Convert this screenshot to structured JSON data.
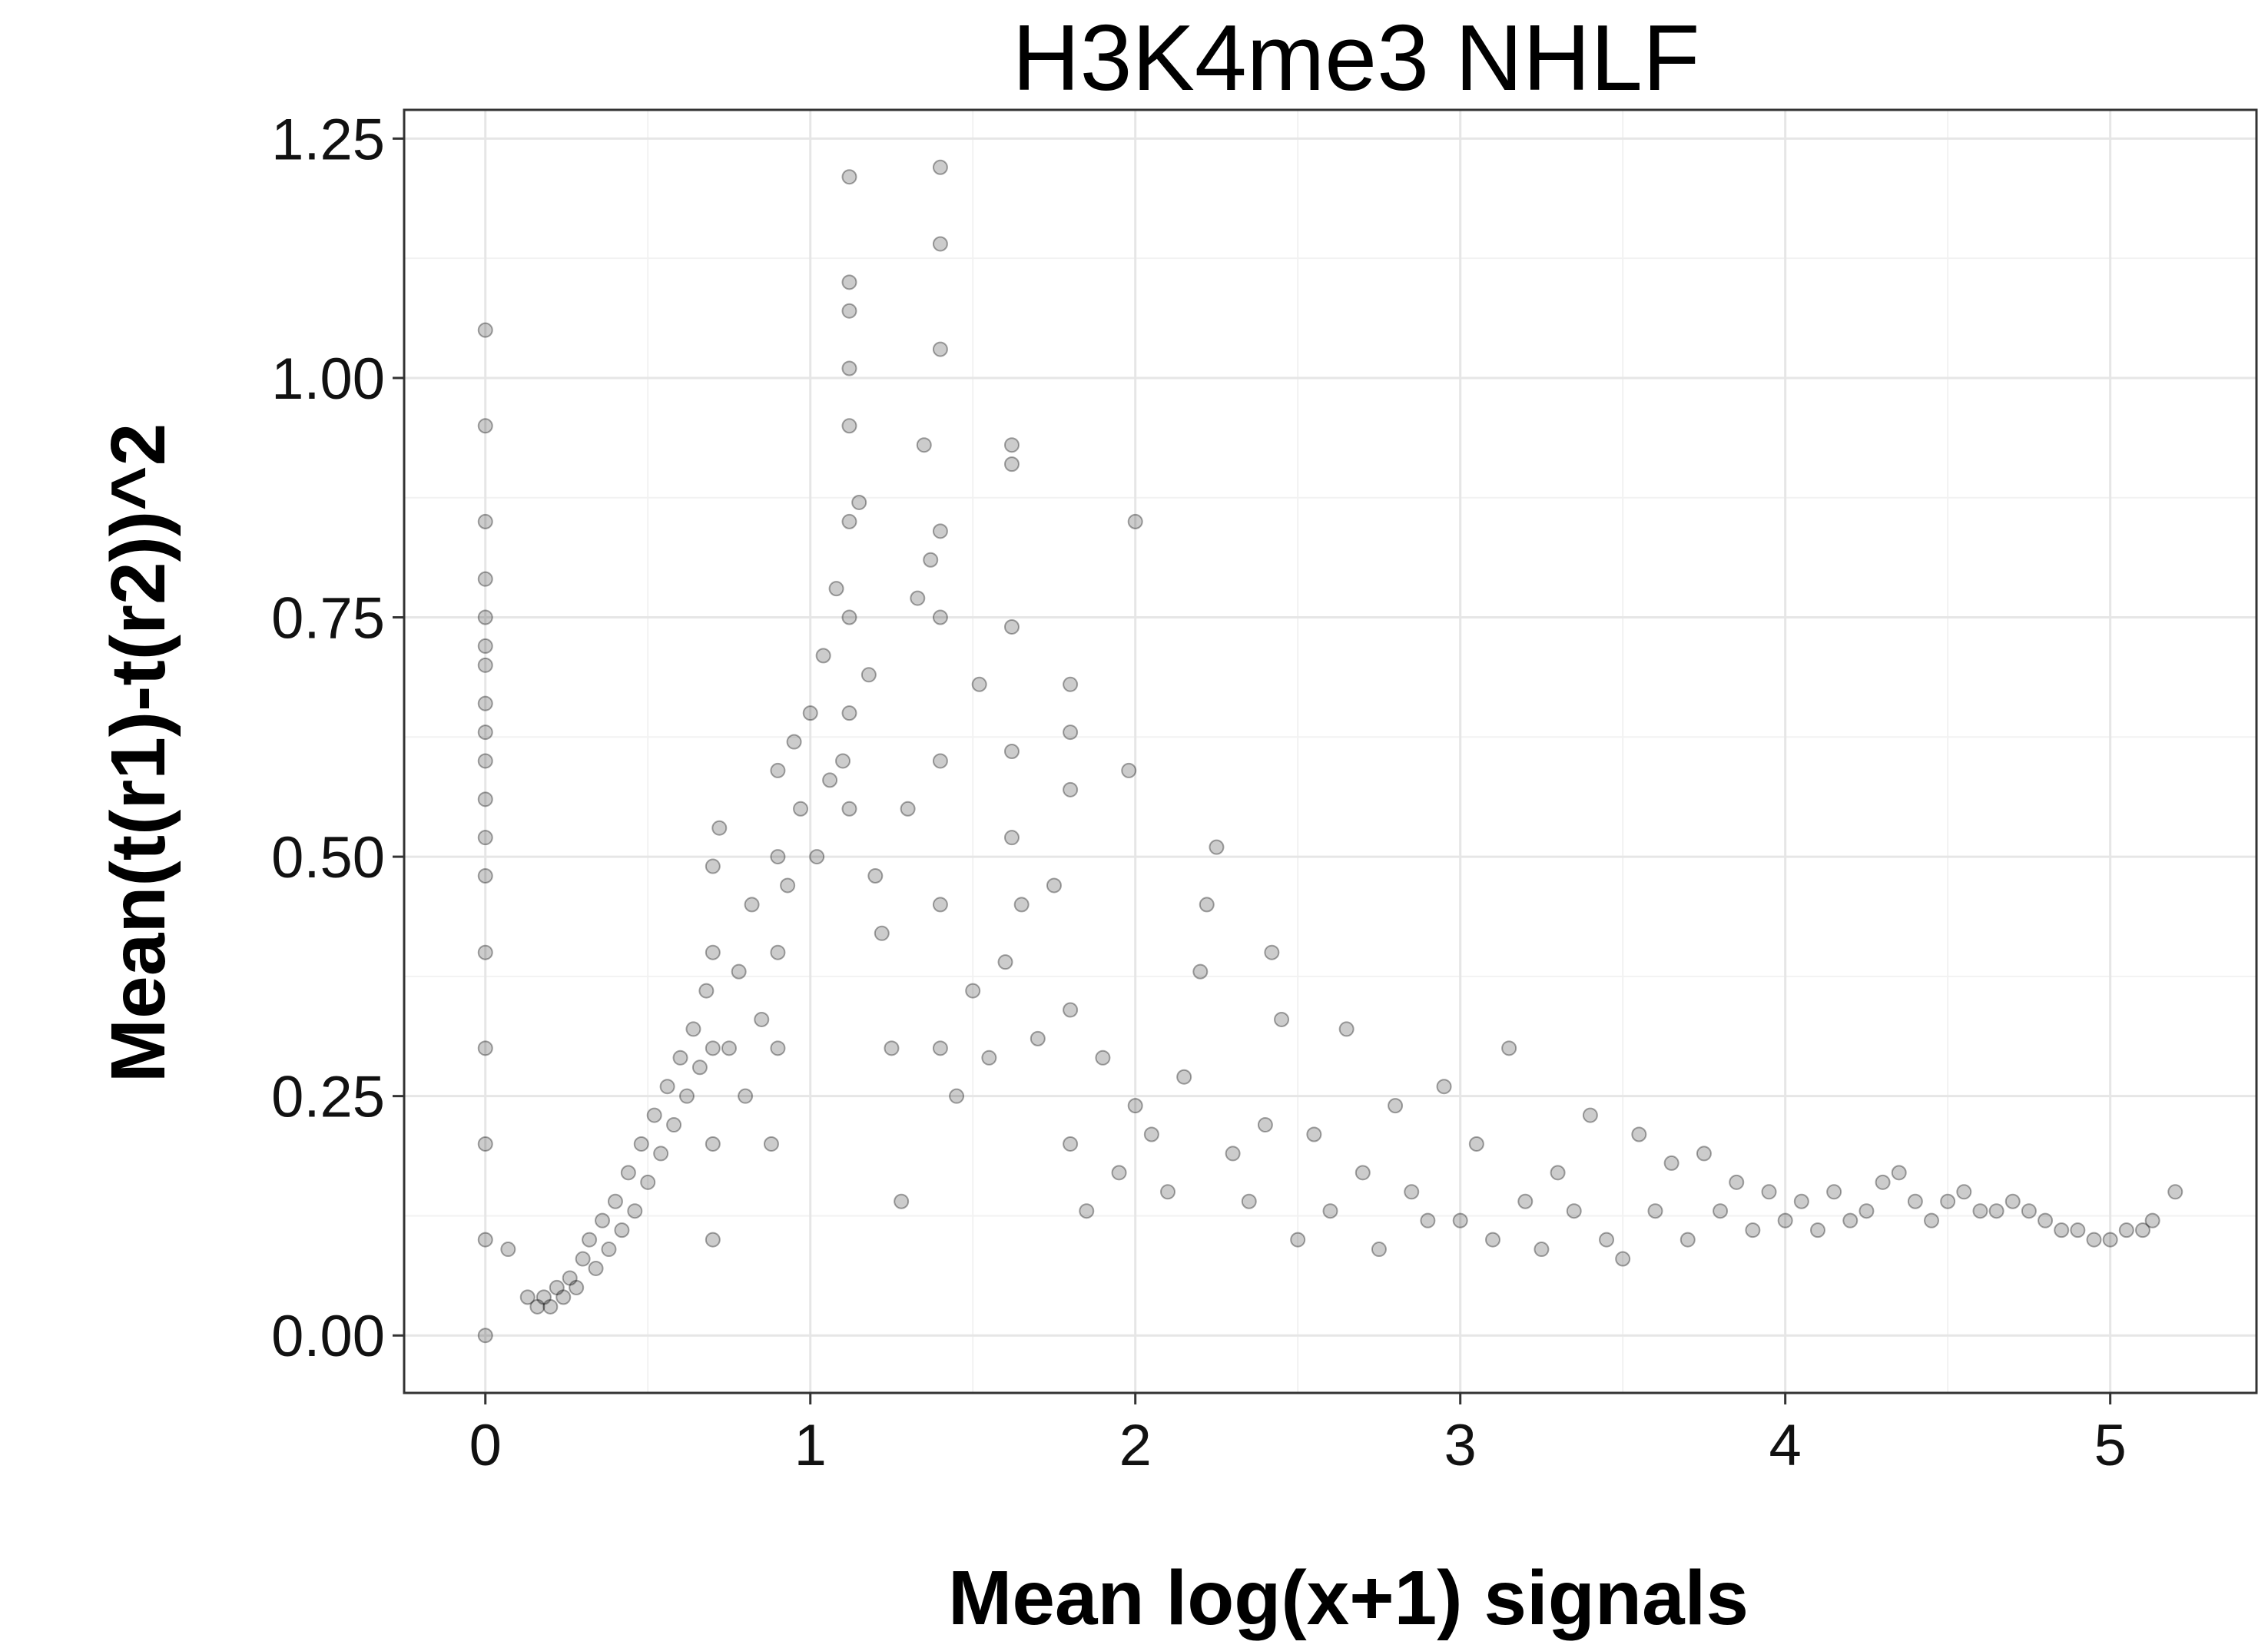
{
  "chart_data": {
    "type": "scatter",
    "title": "H3K4me3 NHLF",
    "xlabel": "Mean log(x+1) signals",
    "ylabel": "Mean(t(r1)-t(r2))^2",
    "xlim": [
      -0.25,
      5.45
    ],
    "ylim": [
      -0.06,
      1.28
    ],
    "x_ticks": [
      0,
      1,
      2,
      3,
      4,
      5
    ],
    "y_ticks": [
      0.0,
      0.25,
      0.5,
      0.75,
      1.0,
      1.25
    ],
    "x_tick_labels": [
      "0",
      "1",
      "2",
      "3",
      "4",
      "5"
    ],
    "y_tick_labels": [
      "0.00",
      "0.25",
      "0.50",
      "0.75",
      "1.00",
      "1.25"
    ],
    "grid": true,
    "legend": "none",
    "point_color": "#000000",
    "point_opacity": 0.2,
    "series": [
      {
        "points": [
          [
            0,
            0.0
          ],
          [
            0,
            0.1
          ],
          [
            0,
            0.2
          ],
          [
            0,
            0.3
          ],
          [
            0,
            0.4
          ],
          [
            0,
            0.48
          ],
          [
            0,
            0.52
          ],
          [
            0,
            0.56
          ],
          [
            0,
            0.6
          ],
          [
            0,
            0.63
          ],
          [
            0,
            0.66
          ],
          [
            0,
            0.7
          ],
          [
            0,
            0.72
          ],
          [
            0,
            0.75
          ],
          [
            0,
            0.79
          ],
          [
            0,
            0.85
          ],
          [
            0,
            0.95
          ],
          [
            0,
            1.05
          ],
          [
            0.07,
            0.09
          ],
          [
            0.13,
            0.04
          ],
          [
            0.16,
            0.03
          ],
          [
            0.18,
            0.04
          ],
          [
            0.2,
            0.03
          ],
          [
            0.22,
            0.05
          ],
          [
            0.24,
            0.04
          ],
          [
            0.26,
            0.06
          ],
          [
            0.28,
            0.05
          ],
          [
            0.3,
            0.08
          ],
          [
            0.32,
            0.1
          ],
          [
            0.34,
            0.07
          ],
          [
            0.36,
            0.12
          ],
          [
            0.38,
            0.09
          ],
          [
            0.4,
            0.14
          ],
          [
            0.42,
            0.11
          ],
          [
            0.44,
            0.17
          ],
          [
            0.46,
            0.13
          ],
          [
            0.48,
            0.2
          ],
          [
            0.5,
            0.16
          ],
          [
            0.52,
            0.23
          ],
          [
            0.54,
            0.19
          ],
          [
            0.56,
            0.26
          ],
          [
            0.58,
            0.22
          ],
          [
            0.6,
            0.29
          ],
          [
            0.62,
            0.25
          ],
          [
            0.64,
            0.32
          ],
          [
            0.66,
            0.28
          ],
          [
            0.68,
            0.36
          ],
          [
            0.7,
            0.1
          ],
          [
            0.7,
            0.2
          ],
          [
            0.7,
            0.3
          ],
          [
            0.7,
            0.4
          ],
          [
            0.7,
            0.49
          ],
          [
            0.72,
            0.53
          ],
          [
            0.75,
            0.3
          ],
          [
            0.78,
            0.38
          ],
          [
            0.8,
            0.25
          ],
          [
            0.82,
            0.45
          ],
          [
            0.85,
            0.33
          ],
          [
            0.88,
            0.2
          ],
          [
            0.9,
            0.3
          ],
          [
            0.9,
            0.4
          ],
          [
            0.9,
            0.5
          ],
          [
            0.9,
            0.59
          ],
          [
            0.93,
            0.47
          ],
          [
            0.95,
            0.62
          ],
          [
            0.97,
            0.55
          ],
          [
            1.0,
            0.65
          ],
          [
            1.02,
            0.5
          ],
          [
            1.04,
            0.71
          ],
          [
            1.06,
            0.58
          ],
          [
            1.08,
            0.78
          ],
          [
            1.1,
            0.6
          ],
          [
            1.12,
            0.55
          ],
          [
            1.12,
            0.65
          ],
          [
            1.12,
            0.75
          ],
          [
            1.12,
            0.85
          ],
          [
            1.12,
            0.95
          ],
          [
            1.12,
            1.01
          ],
          [
            1.12,
            1.07
          ],
          [
            1.12,
            1.1
          ],
          [
            1.12,
            1.21
          ],
          [
            1.15,
            0.87
          ],
          [
            1.18,
            0.69
          ],
          [
            1.2,
            0.48
          ],
          [
            1.22,
            0.42
          ],
          [
            1.25,
            0.3
          ],
          [
            1.28,
            0.14
          ],
          [
            1.3,
            0.55
          ],
          [
            1.33,
            0.77
          ],
          [
            1.35,
            0.93
          ],
          [
            1.37,
            0.81
          ],
          [
            1.4,
            0.3
          ],
          [
            1.4,
            0.45
          ],
          [
            1.4,
            0.6
          ],
          [
            1.4,
            0.75
          ],
          [
            1.4,
            0.84
          ],
          [
            1.4,
            1.03
          ],
          [
            1.4,
            1.14
          ],
          [
            1.4,
            1.22
          ],
          [
            1.45,
            0.25
          ],
          [
            1.5,
            0.36
          ],
          [
            1.52,
            0.68
          ],
          [
            1.55,
            0.29
          ],
          [
            1.6,
            0.39
          ],
          [
            1.62,
            0.52
          ],
          [
            1.62,
            0.61
          ],
          [
            1.62,
            0.74
          ],
          [
            1.62,
            0.91
          ],
          [
            1.62,
            0.93
          ],
          [
            1.65,
            0.45
          ],
          [
            1.7,
            0.31
          ],
          [
            1.75,
            0.47
          ],
          [
            1.8,
            0.2
          ],
          [
            1.8,
            0.34
          ],
          [
            1.8,
            0.57
          ],
          [
            1.8,
            0.63
          ],
          [
            1.8,
            0.68
          ],
          [
            1.85,
            0.13
          ],
          [
            1.9,
            0.29
          ],
          [
            1.95,
            0.17
          ],
          [
            1.98,
            0.59
          ],
          [
            2.0,
            0.24
          ],
          [
            2.0,
            0.85
          ],
          [
            2.05,
            0.21
          ],
          [
            2.1,
            0.15
          ],
          [
            2.15,
            0.27
          ],
          [
            2.2,
            0.38
          ],
          [
            2.22,
            0.45
          ],
          [
            2.25,
            0.51
          ],
          [
            2.3,
            0.19
          ],
          [
            2.35,
            0.14
          ],
          [
            2.4,
            0.22
          ],
          [
            2.42,
            0.4
          ],
          [
            2.45,
            0.33
          ],
          [
            2.5,
            0.1
          ],
          [
            2.55,
            0.21
          ],
          [
            2.6,
            0.13
          ],
          [
            2.65,
            0.32
          ],
          [
            2.7,
            0.17
          ],
          [
            2.75,
            0.09
          ],
          [
            2.8,
            0.24
          ],
          [
            2.85,
            0.15
          ],
          [
            2.9,
            0.12
          ],
          [
            2.95,
            0.26
          ],
          [
            3.0,
            0.12
          ],
          [
            3.05,
            0.2
          ],
          [
            3.1,
            0.1
          ],
          [
            3.15,
            0.3
          ],
          [
            3.2,
            0.14
          ],
          [
            3.25,
            0.09
          ],
          [
            3.3,
            0.17
          ],
          [
            3.35,
            0.13
          ],
          [
            3.4,
            0.23
          ],
          [
            3.45,
            0.1
          ],
          [
            3.5,
            0.08
          ],
          [
            3.55,
            0.21
          ],
          [
            3.6,
            0.13
          ],
          [
            3.65,
            0.18
          ],
          [
            3.7,
            0.1
          ],
          [
            3.75,
            0.19
          ],
          [
            3.8,
            0.13
          ],
          [
            3.85,
            0.16
          ],
          [
            3.9,
            0.11
          ],
          [
            3.95,
            0.15
          ],
          [
            4.0,
            0.12
          ],
          [
            4.05,
            0.14
          ],
          [
            4.1,
            0.11
          ],
          [
            4.15,
            0.15
          ],
          [
            4.2,
            0.12
          ],
          [
            4.25,
            0.13
          ],
          [
            4.3,
            0.16
          ],
          [
            4.35,
            0.17
          ],
          [
            4.4,
            0.14
          ],
          [
            4.45,
            0.12
          ],
          [
            4.5,
            0.14
          ],
          [
            4.55,
            0.15
          ],
          [
            4.6,
            0.13
          ],
          [
            4.65,
            0.13
          ],
          [
            4.7,
            0.14
          ],
          [
            4.75,
            0.13
          ],
          [
            4.8,
            0.12
          ],
          [
            4.85,
            0.11
          ],
          [
            4.9,
            0.11
          ],
          [
            4.95,
            0.1
          ],
          [
            5.0,
            0.1
          ],
          [
            5.05,
            0.11
          ],
          [
            5.1,
            0.11
          ],
          [
            5.13,
            0.12
          ],
          [
            5.2,
            0.15
          ]
        ]
      }
    ]
  }
}
